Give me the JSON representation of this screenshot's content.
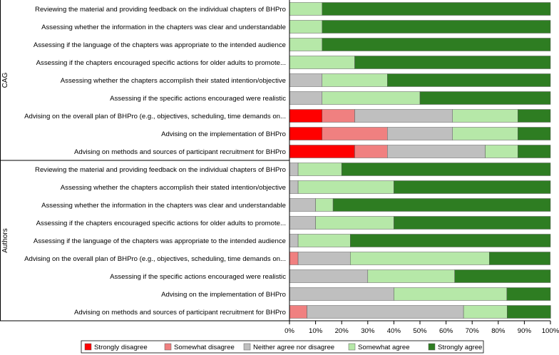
{
  "chart_data": {
    "type": "bar",
    "orientation": "horizontal",
    "stacked": true,
    "percent": true,
    "title": "",
    "xlabel": "",
    "ylabel": "",
    "xlim": [
      0,
      100
    ],
    "x_ticks": [
      "0%",
      "10%",
      "20%",
      "30%",
      "40%",
      "50%",
      "60%",
      "70%",
      "80%",
      "90%",
      "100%"
    ],
    "legend": {
      "position": "bottom",
      "items": [
        {
          "name": "Strongly disagree",
          "color": "#ff0000"
        },
        {
          "name": "Somewhat disagree",
          "color": "#f08080"
        },
        {
          "name": "Neither agree nor disagree",
          "color": "#bfbfbf"
        },
        {
          "name": "Somewhat agree",
          "color": "#b6e8a8"
        },
        {
          "name": "Strongly agree",
          "color": "#2e7d22"
        }
      ]
    },
    "groups": [
      {
        "name": "CAG",
        "rows": [
          {
            "label": "Reviewing the material and providing feedback on the individual chapters of BHPro",
            "values": [
              0,
              0,
              0,
              12.5,
              87.5
            ]
          },
          {
            "label": "Assessing whether the information in the chapters was clear and understandable",
            "values": [
              0,
              0,
              0,
              12.5,
              87.5
            ]
          },
          {
            "label": "Assessing if the language of the chapters was appropriate to the intended audience",
            "values": [
              0,
              0,
              0,
              12.5,
              87.5
            ]
          },
          {
            "label": "Assessing if the chapters encouraged specific actions for older adults to promote...",
            "values": [
              0,
              0,
              0,
              25,
              75
            ]
          },
          {
            "label": "Assessing whether the chapters accomplish their stated intention/objective",
            "values": [
              0,
              0,
              12.5,
              25,
              62.5
            ]
          },
          {
            "label": "Assessing if the specific actions encouraged were realistic",
            "values": [
              0,
              0,
              12.5,
              37.5,
              50
            ]
          },
          {
            "label": "Advising on the overall plan of BHPro (e.g., objectives, scheduling, time demands on...",
            "values": [
              12.5,
              12.5,
              37.5,
              25,
              12.5
            ]
          },
          {
            "label": "Advising on the implementation of BHPro",
            "values": [
              12.5,
              25,
              25,
              25,
              12.5
            ]
          },
          {
            "label": "Advising on methods and sources of participant recruitment for BHPro",
            "values": [
              25,
              12.5,
              37.5,
              12.5,
              12.5
            ]
          }
        ]
      },
      {
        "name": "Authors",
        "rows": [
          {
            "label": "Reviewing the material and providing feedback on the individual chapters of BHPro",
            "values": [
              0,
              0,
              3.3,
              16.7,
              80
            ]
          },
          {
            "label": "Assessing whether the chapters accomplish their stated intention/objective",
            "values": [
              0,
              0,
              3.3,
              36.7,
              60
            ]
          },
          {
            "label": "Assessing whether the information in the chapters was clear and understandable",
            "values": [
              0,
              0,
              10,
              6.7,
              83.3
            ]
          },
          {
            "label": "Assessing if the chapters encouraged specific actions for older adults to promote...",
            "values": [
              0,
              0,
              10,
              30,
              60
            ]
          },
          {
            "label": "Assessing if the language of the chapters was appropriate to the intended audience",
            "values": [
              0,
              0,
              3.3,
              20,
              76.7
            ]
          },
          {
            "label": "Advising on the overall plan of BHPro (e.g., objectives, scheduling, time demands on...",
            "values": [
              0,
              3.3,
              20,
              53.3,
              23.3
            ]
          },
          {
            "label": "Assessing if the specific actions encouraged were realistic",
            "values": [
              0,
              0,
              30,
              33.3,
              36.7
            ]
          },
          {
            "label": "Advising on the implementation of BHPro",
            "values": [
              0,
              0,
              40,
              43.3,
              16.7
            ]
          },
          {
            "label": "Advising on methods and sources of participant recruitment for BHPro",
            "values": [
              0,
              6.7,
              60,
              16.7,
              16.7
            ]
          }
        ]
      }
    ]
  }
}
